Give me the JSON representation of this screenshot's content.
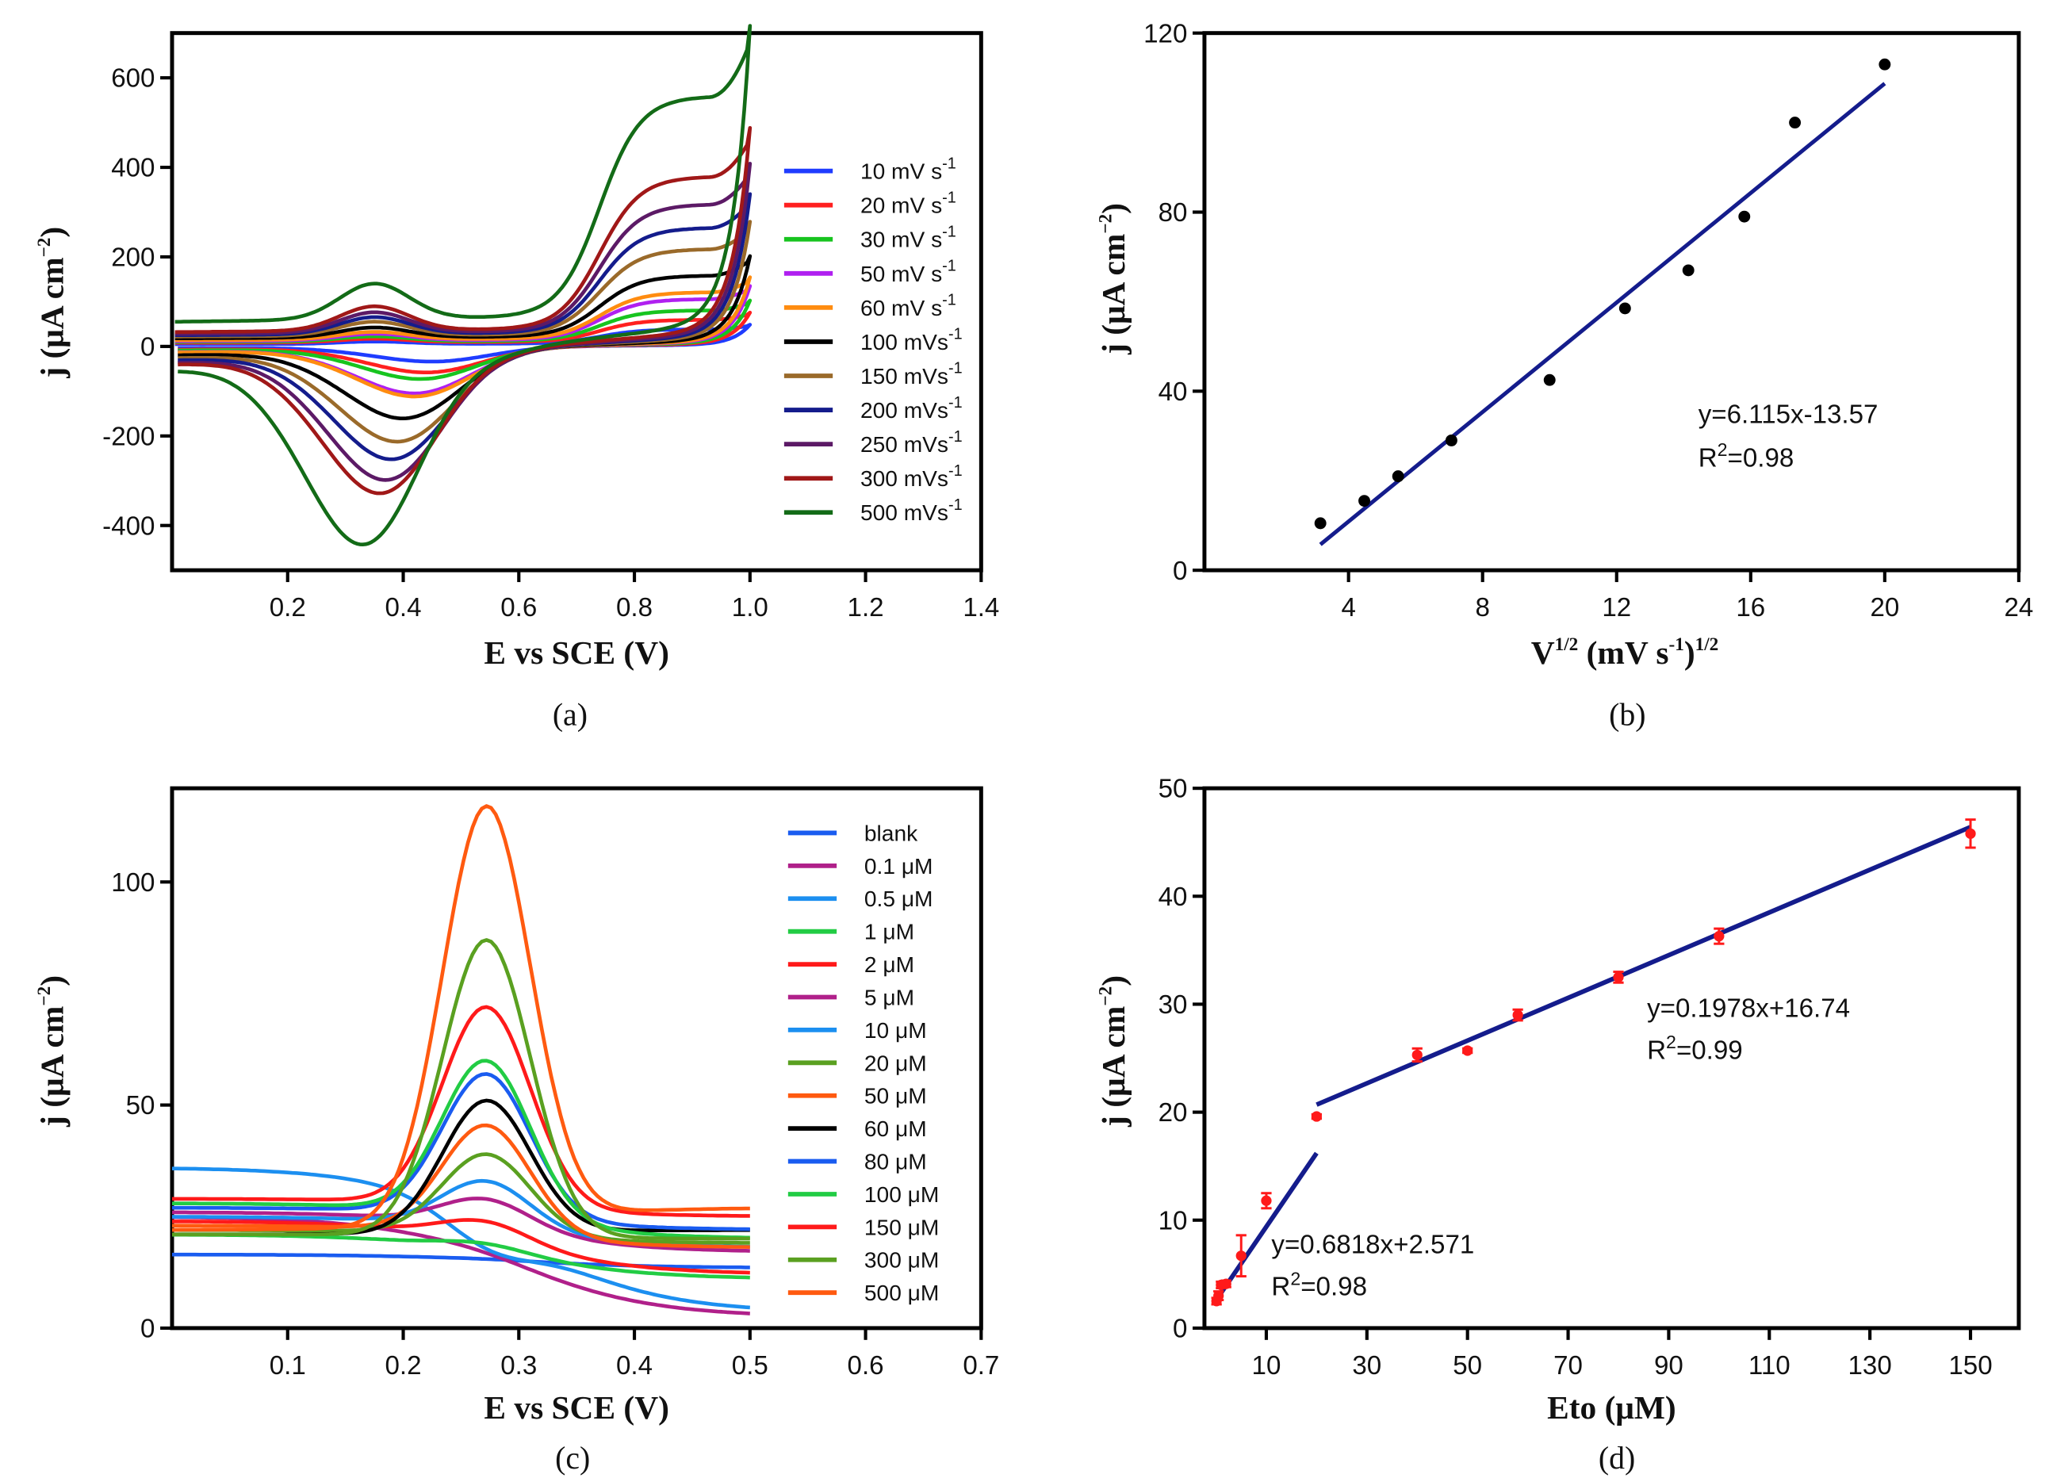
{
  "chart_data": [
    {
      "panel": "a",
      "type": "line",
      "caption": "(a)",
      "xlabel": "E vs SCE (V)",
      "ylabel": [
        "j (μA cm",
        "−2",
        ")"
      ],
      "xlim": [
        0,
        1.4
      ],
      "ylim": [
        -500,
        700
      ],
      "xticks": [
        0.2,
        0.4,
        0.6,
        0.8,
        1.0,
        1.2,
        1.4
      ],
      "xtick_labels": [
        "0.2",
        "0.4",
        "0.6",
        "0.8",
        "1.0",
        "1.2",
        "1.4"
      ],
      "yticks": [
        -400,
        -200,
        0,
        200,
        400,
        600
      ],
      "ytick_labels": [
        "-400",
        "-200",
        "0",
        "200",
        "400",
        "600"
      ],
      "legend_position": "right",
      "series": [
        {
          "name": "10 mV s",
          "sup": "-1",
          "color": "#1f3cff",
          "anodic_j_at_1V": 45,
          "cathodic_peak_j": -35,
          "cathodic_peak_E": 0.46,
          "start_j": 5
        },
        {
          "name": "20 mV s",
          "sup": "-1",
          "color": "#ff2020",
          "anodic_j_at_1V": 70,
          "cathodic_peak_j": -60,
          "cathodic_peak_E": 0.45,
          "start_j": 8
        },
        {
          "name": "30 mV s",
          "sup": "-1",
          "color": "#17c41f",
          "anodic_j_at_1V": 95,
          "cathodic_peak_j": -75,
          "cathodic_peak_E": 0.44,
          "start_j": 10
        },
        {
          "name": "50 mV s",
          "sup": "-1",
          "color": "#b020f0",
          "anodic_j_at_1V": 125,
          "cathodic_peak_j": -108,
          "cathodic_peak_E": 0.43,
          "start_j": 12
        },
        {
          "name": "60 mV s",
          "sup": "-1",
          "color": "#ff8c10",
          "anodic_j_at_1V": 143,
          "cathodic_peak_j": -115,
          "cathodic_peak_E": 0.43,
          "start_j": 14
        },
        {
          "name": "100 mVs",
          "sup": "-1",
          "color": "#000000",
          "anodic_j_at_1V": 187,
          "cathodic_peak_j": -165,
          "cathodic_peak_E": 0.41,
          "start_j": 18
        },
        {
          "name": "150 mVs",
          "sup": "-1",
          "color": "#9a6a2a",
          "anodic_j_at_1V": 258,
          "cathodic_peak_j": -218,
          "cathodic_peak_E": 0.4,
          "start_j": 22
        },
        {
          "name": "200 mVs",
          "sup": "-1",
          "color": "#141c8c",
          "anodic_j_at_1V": 315,
          "cathodic_peak_j": -258,
          "cathodic_peak_E": 0.39,
          "start_j": 25
        },
        {
          "name": "250 mVs",
          "sup": "-1",
          "color": "#5c1a66",
          "anodic_j_at_1V": 378,
          "cathodic_peak_j": -305,
          "cathodic_peak_E": 0.38,
          "start_j": 28
        },
        {
          "name": "300 mVs",
          "sup": "-1",
          "color": "#a01818",
          "anodic_j_at_1V": 452,
          "cathodic_peak_j": -335,
          "cathodic_peak_E": 0.37,
          "start_j": 32
        },
        {
          "name": "500 mVs",
          "sup": "-1",
          "color": "#136b17",
          "anodic_j_at_1V": 663,
          "cathodic_peak_j": -450,
          "cathodic_peak_E": 0.34,
          "start_j": 55
        }
      ]
    },
    {
      "panel": "b",
      "type": "scatter",
      "caption": "(b)",
      "xlabel": [
        "V",
        "1/2",
        " (mV s",
        "-1",
        ")",
        "1/2"
      ],
      "ylabel": [
        "j (μA cm",
        "−2",
        ")"
      ],
      "xlim": [
        -0.3,
        24
      ],
      "ylim": [
        0,
        120
      ],
      "xticks": [
        4,
        8,
        12,
        16,
        20,
        24
      ],
      "xtick_labels": [
        "4",
        "8",
        "12",
        "16",
        "20",
        "24"
      ],
      "yticks": [
        0,
        40,
        80,
        120
      ],
      "ytick_labels": [
        "0",
        "40",
        "80",
        "120"
      ],
      "x": [
        3.16,
        4.47,
        5.48,
        7.07,
        10.0,
        12.25,
        14.14,
        15.81,
        17.32,
        20.0
      ],
      "y": [
        10.5,
        15.5,
        21,
        29,
        42.5,
        58.5,
        67,
        79,
        100,
        113
      ],
      "point_color": "#000000",
      "fit": {
        "slope": 6.115,
        "intercept": -13.57,
        "x_range": [
          3.16,
          20
        ],
        "color": "#141c8c"
      },
      "annotation": {
        "equation": "y=6.115x-13.57",
        "r2_prefix": "R",
        "r2_sup": "2",
        "r2_value": "=0.98"
      }
    },
    {
      "panel": "c",
      "type": "line",
      "caption": "(c)",
      "xlabel": "E vs SCE (V)",
      "ylabel": [
        "j (μA cm",
        "−2",
        ")"
      ],
      "xlim": [
        0,
        0.7
      ],
      "ylim": [
        0,
        121
      ],
      "xticks": [
        0.1,
        0.2,
        0.3,
        0.4,
        0.5,
        0.6,
        0.7
      ],
      "xtick_labels": [
        "0.1",
        "0.2",
        "0.3",
        "0.4",
        "0.5",
        "0.6",
        "0.7"
      ],
      "yticks": [
        0,
        50,
        100
      ],
      "ytick_labels": [
        "0",
        "50",
        "100"
      ],
      "legend_position": "right",
      "series": [
        {
          "name": "blank",
          "color": "#1a5cf0",
          "start_j": 16.5,
          "peak_j": 15.5,
          "end_j": 13.5
        },
        {
          "name": "0.1 μM",
          "color": "#b0208a",
          "start_j": 25,
          "peak_j": 17,
          "end_j": 2.5
        },
        {
          "name": "0.5 μM",
          "color": "#1c8ff0",
          "start_j": 36,
          "peak_j": 18,
          "end_j": 3.5
        },
        {
          "name": "1 μM",
          "color": "#22cc44",
          "start_j": 21,
          "peak_j": 19,
          "end_j": 11
        },
        {
          "name": "2 μM",
          "color": "#ff1a1a",
          "start_j": 24,
          "peak_j": 24,
          "end_j": 12
        },
        {
          "name": "5 μM",
          "color": "#b0208a",
          "start_j": 26,
          "peak_j": 29,
          "end_j": 17
        },
        {
          "name": "10 μM",
          "color": "#1c8ff0",
          "start_j": 25,
          "peak_j": 33,
          "end_j": 18
        },
        {
          "name": "20 μM",
          "color": "#5aa020",
          "start_j": 22,
          "peak_j": 39,
          "end_j": 19
        },
        {
          "name": "50 μM",
          "color": "#ff5a10",
          "start_j": 23,
          "peak_j": 45.5,
          "end_j": 18
        },
        {
          "name": "60 μM",
          "color": "#000000",
          "start_j": 21,
          "peak_j": 51,
          "end_j": 22
        },
        {
          "name": "80 μM",
          "color": "#1a5cf0",
          "start_j": 27,
          "peak_j": 57,
          "end_j": 22
        },
        {
          "name": "100 μM",
          "color": "#22cc44",
          "start_j": 28,
          "peak_j": 60,
          "end_j": 20
        },
        {
          "name": "150 μM",
          "color": "#ff1a1a",
          "start_j": 29,
          "peak_j": 72,
          "end_j": 25
        },
        {
          "name": "300 μM",
          "color": "#5aa020",
          "start_j": 21,
          "peak_j": 87,
          "end_j": 20
        },
        {
          "name": "500 μM",
          "color": "#ff5a10",
          "start_j": 22,
          "peak_j": 117,
          "end_j": 27
        }
      ]
    },
    {
      "panel": "d",
      "type": "scatter",
      "caption": "(d)",
      "xlabel": "Eto (μM)",
      "ylabel": [
        "j (μA cm",
        "−2",
        ")"
      ],
      "xlim": [
        -2.3,
        159.6
      ],
      "ylim": [
        0,
        50
      ],
      "xticks": [
        10,
        30,
        50,
        70,
        90,
        110,
        130,
        150
      ],
      "xtick_labels": [
        "10",
        "30",
        "50",
        "70",
        "90",
        "110",
        "130",
        "150"
      ],
      "yticks": [
        0,
        10,
        20,
        30,
        40,
        50
      ],
      "ytick_labels": [
        "0",
        "10",
        "20",
        "30",
        "40",
        "50"
      ],
      "x": [
        0.1,
        0.5,
        1,
        2,
        5,
        10,
        20,
        40,
        50,
        60,
        80,
        100,
        150
      ],
      "y": [
        2.5,
        3.0,
        4.0,
        4.1,
        6.7,
        11.8,
        19.6,
        25.3,
        25.7,
        29.0,
        32.5,
        36.3,
        45.8
      ],
      "y_err": [
        0.3,
        0.4,
        0.3,
        0.3,
        1.9,
        0.7,
        0.2,
        0.6,
        0.2,
        0.5,
        0.5,
        0.7,
        1.3
      ],
      "point_color": "#ff1a1a",
      "fits": [
        {
          "slope": 0.6818,
          "intercept": 2.571,
          "x_range": [
            0.5,
            20
          ],
          "color": "#141c8c"
        },
        {
          "slope": 0.1978,
          "intercept": 16.74,
          "x_range": [
            20,
            150
          ],
          "color": "#141c8c"
        }
      ],
      "annotations": [
        {
          "equation": "y=0.6818x+2.571",
          "r2_prefix": "R",
          "r2_sup": "2",
          "r2_value": "=0.98"
        },
        {
          "equation": "y=0.1978x+16.74",
          "r2_prefix": "R",
          "r2_sup": "2",
          "r2_value": "=0.99"
        }
      ]
    }
  ]
}
